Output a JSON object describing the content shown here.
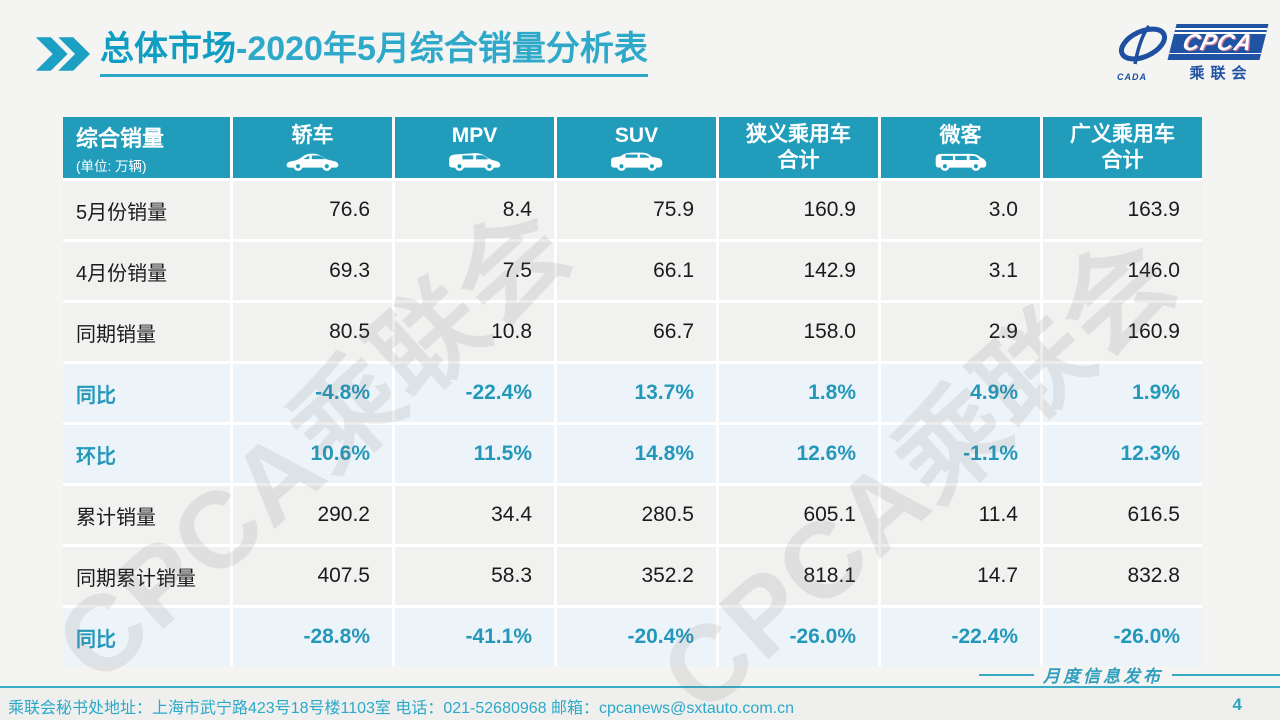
{
  "title": {
    "bold": "总体市场",
    "rest": "-2020年5月综合销量分析表"
  },
  "logo": {
    "cpca": "CPCA",
    "cada": "CADA",
    "chenglianhui": "乘联会"
  },
  "watermark": "CPCA乘联会",
  "table": {
    "header": {
      "col0_title": "综合销量",
      "col0_sub": "(单位: 万辆)",
      "columns": [
        {
          "label": "轿车",
          "icon": "sedan-icon"
        },
        {
          "label": "MPV",
          "icon": "mpv-icon"
        },
        {
          "label": "SUV",
          "icon": "suv-icon"
        },
        {
          "label": "狭义乘用车",
          "label2": "合计",
          "icon": ""
        },
        {
          "label": "微客",
          "icon": "microvan-icon"
        },
        {
          "label": "广义乘用车",
          "label2": "合计",
          "icon": ""
        }
      ]
    },
    "rows": [
      {
        "label": "5月份销量",
        "type": "normal",
        "values": [
          "76.6",
          "8.4",
          "75.9",
          "160.9",
          "3.0",
          "163.9"
        ]
      },
      {
        "label": "4月份销量",
        "type": "normal",
        "values": [
          "69.3",
          "7.5",
          "66.1",
          "142.9",
          "3.1",
          "146.0"
        ]
      },
      {
        "label": "同期销量",
        "type": "normal",
        "values": [
          "80.5",
          "10.8",
          "66.7",
          "158.0",
          "2.9",
          "160.9"
        ]
      },
      {
        "label": "同比",
        "type": "highlight",
        "values": [
          "-4.8%",
          "-22.4%",
          "13.7%",
          "1.8%",
          "4.9%",
          "1.9%"
        ]
      },
      {
        "label": "环比",
        "type": "highlight",
        "values": [
          "10.6%",
          "11.5%",
          "14.8%",
          "12.6%",
          "-1.1%",
          "12.3%"
        ]
      },
      {
        "label": "累计销量",
        "type": "normal",
        "values": [
          "290.2",
          "34.4",
          "280.5",
          "605.1",
          "11.4",
          "616.5"
        ]
      },
      {
        "label": "同期累计销量",
        "type": "normal",
        "values": [
          "407.5",
          "58.3",
          "352.2",
          "818.1",
          "14.7",
          "832.8"
        ]
      },
      {
        "label": "同比",
        "type": "highlight",
        "values": [
          "-28.8%",
          "-41.1%",
          "-20.4%",
          "-26.0%",
          "-22.4%",
          "-26.0%"
        ]
      }
    ]
  },
  "footer": {
    "address": "乘联会秘书处地址：上海市武宁路423号18号楼1103室 电话：021-52680968  邮箱：cpcanews@sxtauto.com.cn",
    "release_label": "月度信息发布",
    "page_number": "4"
  },
  "colors": {
    "accent_teal": "#219DBB",
    "title_teal": "#17A1C3",
    "highlight_row_bg": "#EDF4F9",
    "normal_row_bg": "#F1F1F0",
    "highlight_text": "#2498BA",
    "logo_blue": "#2053A4",
    "footer_teal": "#2BA9C9"
  }
}
